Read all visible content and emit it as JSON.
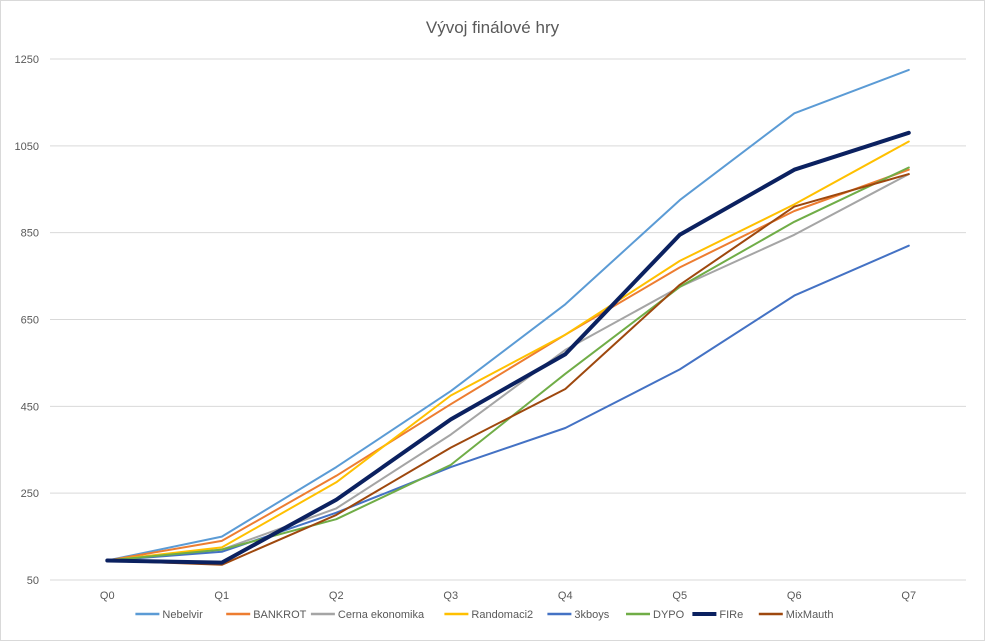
{
  "chart_data": {
    "type": "line",
    "title": "Vývoj finálové hry",
    "xlabel": "",
    "ylabel": "",
    "categories": [
      "Q0",
      "Q1",
      "Q2",
      "Q3",
      "Q4",
      "Q5",
      "Q6",
      "Q7"
    ],
    "yticks": [
      "50",
      "250",
      "450",
      "650",
      "850",
      "1050",
      "1250"
    ],
    "ylim": [
      50,
      1250
    ],
    "grid": true,
    "legend": "bottom",
    "series": [
      {
        "name": "Nebelvir",
        "color": "#5b9bd5",
        "width": 2,
        "values": [
          95,
          150,
          310,
          485,
          685,
          925,
          1125,
          1225
        ]
      },
      {
        "name": "BANKROT",
        "color": "#ed7d31",
        "width": 2,
        "values": [
          95,
          140,
          290,
          455,
          615,
          770,
          900,
          995
        ]
      },
      {
        "name": "Cerna ekonomika",
        "color": "#a5a5a5",
        "width": 2,
        "values": [
          95,
          120,
          215,
          385,
          580,
          725,
          845,
          985
        ]
      },
      {
        "name": "Randomaci2",
        "color": "#ffc000",
        "width": 2,
        "values": [
          95,
          125,
          275,
          475,
          615,
          785,
          915,
          1060
        ]
      },
      {
        "name": "3kboys",
        "color": "#4472c4",
        "width": 2,
        "values": [
          95,
          115,
          205,
          310,
          400,
          535,
          705,
          820
        ]
      },
      {
        "name": "DYPO",
        "color": "#70ad47",
        "width": 2,
        "values": [
          95,
          120,
          190,
          315,
          525,
          725,
          875,
          1000
        ]
      },
      {
        "name": "FIRe",
        "color": "#0b2160",
        "width": 4,
        "values": [
          95,
          90,
          235,
          420,
          570,
          845,
          995,
          1080
        ]
      },
      {
        "name": "MixMauth",
        "color": "#9e480e",
        "width": 2,
        "values": [
          95,
          85,
          200,
          355,
          490,
          730,
          910,
          985
        ]
      }
    ]
  }
}
